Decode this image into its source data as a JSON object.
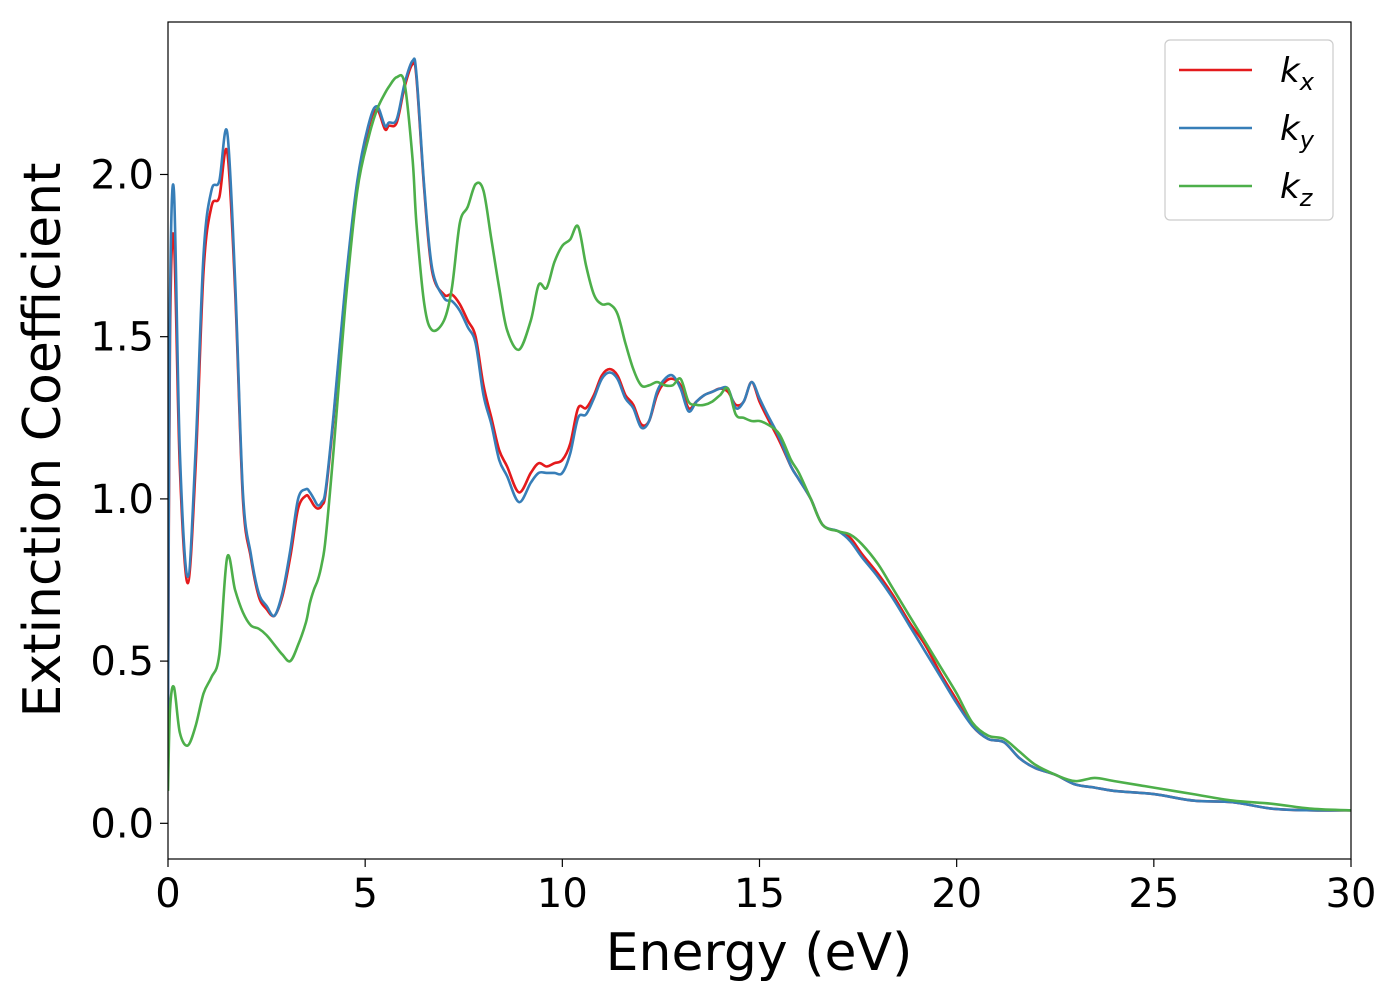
{
  "chart_data": {
    "type": "line",
    "title": "",
    "xlabel": "Energy (eV)",
    "ylabel": "Extinction Coefficient",
    "xlim": [
      0,
      30
    ],
    "ylim": [
      -0.11,
      2.47
    ],
    "xticks": [
      0,
      5,
      10,
      15,
      20,
      25,
      30
    ],
    "xtick_labels": [
      "0",
      "5",
      "10",
      "15",
      "20",
      "25",
      "30"
    ],
    "yticks": [
      0.0,
      0.5,
      1.0,
      1.5,
      2.0
    ],
    "ytick_labels": [
      "0.0",
      "0.5",
      "1.0",
      "1.5",
      "2.0"
    ],
    "grid": false,
    "legend_position": "top-right",
    "series": [
      {
        "name": "k",
        "subscript": "x",
        "color": "#e41a1c",
        "x": [
          0,
          0.05,
          0.15,
          0.3,
          0.5,
          0.7,
          0.9,
          1.1,
          1.3,
          1.5,
          1.7,
          1.9,
          2.1,
          2.3,
          2.5,
          2.7,
          2.9,
          3.1,
          3.3,
          3.5,
          3.6,
          3.7,
          3.8,
          3.9,
          4.0,
          4.2,
          4.5,
          4.8,
          5.1,
          5.3,
          5.5,
          5.6,
          5.8,
          6.0,
          6.2,
          6.3,
          6.5,
          6.7,
          7.0,
          7.2,
          7.4,
          7.6,
          7.8,
          8.0,
          8.2,
          8.4,
          8.6,
          8.9,
          9.2,
          9.4,
          9.6,
          9.8,
          10.0,
          10.2,
          10.4,
          10.6,
          10.8,
          11.0,
          11.2,
          11.4,
          11.6,
          11.8,
          12.0,
          12.2,
          12.4,
          12.6,
          12.8,
          13.0,
          13.2,
          13.4,
          13.6,
          13.8,
          14.0,
          14.2,
          14.4,
          14.6,
          14.8,
          15.0,
          15.2,
          15.5,
          15.8,
          16.0,
          16.3,
          16.6,
          17.0,
          17.3,
          17.6,
          18.0,
          18.4,
          18.8,
          19.2,
          19.6,
          20.0,
          20.4,
          20.8,
          21.2,
          21.6,
          22.0,
          22.5,
          23.0,
          23.5,
          24.0,
          25.0,
          26.0,
          27.0,
          28.0,
          29.0,
          30.0
        ],
        "y": [
          0.3,
          1.5,
          1.8,
          1.1,
          0.74,
          1.1,
          1.7,
          1.9,
          1.93,
          2.07,
          1.65,
          1.0,
          0.82,
          0.7,
          0.66,
          0.64,
          0.7,
          0.82,
          0.97,
          1.01,
          1.0,
          0.98,
          0.97,
          0.98,
          1.02,
          1.25,
          1.65,
          1.97,
          2.15,
          2.2,
          2.14,
          2.15,
          2.16,
          2.27,
          2.34,
          2.3,
          1.95,
          1.7,
          1.63,
          1.63,
          1.6,
          1.55,
          1.5,
          1.35,
          1.25,
          1.15,
          1.1,
          1.02,
          1.08,
          1.11,
          1.1,
          1.11,
          1.12,
          1.17,
          1.28,
          1.28,
          1.32,
          1.38,
          1.4,
          1.38,
          1.32,
          1.29,
          1.23,
          1.24,
          1.32,
          1.36,
          1.37,
          1.35,
          1.28,
          1.3,
          1.32,
          1.33,
          1.34,
          1.33,
          1.29,
          1.3,
          1.36,
          1.3,
          1.25,
          1.18,
          1.1,
          1.06,
          1.0,
          0.92,
          0.9,
          0.88,
          0.83,
          0.77,
          0.7,
          0.62,
          0.55,
          0.46,
          0.38,
          0.3,
          0.26,
          0.25,
          0.2,
          0.17,
          0.15,
          0.12,
          0.11,
          0.1,
          0.09,
          0.07,
          0.065,
          0.045,
          0.04,
          0.04
        ]
      },
      {
        "name": "k",
        "subscript": "y",
        "color": "#377eb8",
        "x": [
          0,
          0.05,
          0.15,
          0.3,
          0.5,
          0.7,
          0.9,
          1.1,
          1.3,
          1.5,
          1.7,
          1.9,
          2.1,
          2.3,
          2.5,
          2.7,
          2.9,
          3.1,
          3.3,
          3.5,
          3.6,
          3.7,
          3.8,
          3.9,
          4.0,
          4.2,
          4.5,
          4.8,
          5.1,
          5.3,
          5.5,
          5.6,
          5.8,
          6.0,
          6.2,
          6.3,
          6.5,
          6.7,
          7.0,
          7.2,
          7.4,
          7.6,
          7.8,
          8.0,
          8.2,
          8.4,
          8.6,
          8.9,
          9.2,
          9.4,
          9.6,
          9.8,
          10.0,
          10.2,
          10.4,
          10.6,
          10.8,
          11.0,
          11.2,
          11.4,
          11.6,
          11.8,
          12.0,
          12.2,
          12.4,
          12.6,
          12.8,
          13.0,
          13.2,
          13.4,
          13.6,
          13.8,
          14.0,
          14.2,
          14.4,
          14.6,
          14.8,
          15.0,
          15.2,
          15.5,
          15.8,
          16.0,
          16.3,
          16.6,
          17.0,
          17.3,
          17.6,
          18.0,
          18.4,
          18.8,
          19.2,
          19.6,
          20.0,
          20.4,
          20.8,
          21.2,
          21.6,
          22.0,
          22.5,
          23.0,
          23.5,
          24.0,
          25.0,
          26.0,
          27.0,
          28.0,
          29.0,
          30.0
        ],
        "y": [
          0.3,
          1.6,
          1.95,
          1.15,
          0.76,
          1.15,
          1.75,
          1.95,
          1.98,
          2.13,
          1.68,
          1.02,
          0.83,
          0.71,
          0.67,
          0.64,
          0.71,
          0.84,
          1.0,
          1.03,
          1.02,
          1.0,
          0.98,
          0.99,
          1.03,
          1.26,
          1.66,
          1.98,
          2.16,
          2.21,
          2.15,
          2.16,
          2.17,
          2.28,
          2.35,
          2.31,
          1.96,
          1.71,
          1.62,
          1.61,
          1.58,
          1.53,
          1.48,
          1.32,
          1.23,
          1.12,
          1.07,
          0.99,
          1.05,
          1.08,
          1.08,
          1.08,
          1.08,
          1.14,
          1.25,
          1.26,
          1.31,
          1.37,
          1.39,
          1.37,
          1.31,
          1.28,
          1.22,
          1.24,
          1.33,
          1.37,
          1.38,
          1.34,
          1.27,
          1.3,
          1.32,
          1.33,
          1.34,
          1.34,
          1.28,
          1.3,
          1.36,
          1.31,
          1.26,
          1.19,
          1.1,
          1.06,
          1.0,
          0.92,
          0.9,
          0.87,
          0.82,
          0.76,
          0.69,
          0.61,
          0.53,
          0.45,
          0.37,
          0.3,
          0.26,
          0.25,
          0.2,
          0.17,
          0.15,
          0.12,
          0.11,
          0.1,
          0.09,
          0.07,
          0.065,
          0.045,
          0.04,
          0.04
        ]
      },
      {
        "name": "k",
        "subscript": "z",
        "color": "#4daf4a",
        "x": [
          0,
          0.05,
          0.15,
          0.3,
          0.5,
          0.7,
          0.9,
          1.1,
          1.3,
          1.5,
          1.7,
          1.9,
          2.1,
          2.3,
          2.5,
          2.7,
          2.9,
          3.1,
          3.3,
          3.5,
          3.6,
          3.7,
          3.8,
          3.9,
          4.0,
          4.2,
          4.5,
          4.8,
          5.1,
          5.3,
          5.5,
          5.6,
          5.8,
          6.0,
          6.2,
          6.3,
          6.5,
          6.7,
          7.0,
          7.2,
          7.4,
          7.6,
          7.8,
          8.0,
          8.2,
          8.4,
          8.6,
          8.9,
          9.2,
          9.4,
          9.6,
          9.8,
          10.0,
          10.2,
          10.4,
          10.6,
          10.8,
          11.0,
          11.2,
          11.4,
          11.6,
          11.8,
          12.0,
          12.2,
          12.4,
          12.6,
          12.8,
          13.0,
          13.2,
          13.4,
          13.6,
          13.8,
          14.0,
          14.2,
          14.4,
          14.6,
          14.8,
          15.0,
          15.2,
          15.5,
          15.8,
          16.0,
          16.3,
          16.6,
          17.0,
          17.3,
          17.6,
          18.0,
          18.4,
          18.8,
          19.2,
          19.6,
          20.0,
          20.4,
          20.8,
          21.2,
          21.6,
          22.0,
          22.5,
          23.0,
          23.5,
          24.0,
          25.0,
          26.0,
          27.0,
          28.0,
          29.0,
          30.0
        ],
        "y": [
          0.1,
          0.35,
          0.42,
          0.28,
          0.24,
          0.3,
          0.4,
          0.45,
          0.52,
          0.82,
          0.72,
          0.65,
          0.61,
          0.6,
          0.58,
          0.55,
          0.52,
          0.5,
          0.55,
          0.62,
          0.68,
          0.72,
          0.75,
          0.8,
          0.88,
          1.15,
          1.6,
          1.95,
          2.12,
          2.2,
          2.25,
          2.27,
          2.3,
          2.28,
          2.05,
          1.85,
          1.6,
          1.52,
          1.55,
          1.65,
          1.85,
          1.9,
          1.97,
          1.95,
          1.8,
          1.65,
          1.52,
          1.46,
          1.55,
          1.66,
          1.65,
          1.73,
          1.78,
          1.8,
          1.84,
          1.72,
          1.63,
          1.6,
          1.6,
          1.57,
          1.48,
          1.4,
          1.35,
          1.35,
          1.36,
          1.35,
          1.35,
          1.37,
          1.3,
          1.29,
          1.29,
          1.3,
          1.32,
          1.34,
          1.26,
          1.25,
          1.24,
          1.24,
          1.23,
          1.2,
          1.12,
          1.08,
          1.0,
          0.92,
          0.9,
          0.89,
          0.86,
          0.8,
          0.72,
          0.64,
          0.56,
          0.48,
          0.4,
          0.31,
          0.27,
          0.26,
          0.22,
          0.18,
          0.15,
          0.13,
          0.14,
          0.13,
          0.11,
          0.09,
          0.07,
          0.06,
          0.045,
          0.04
        ]
      }
    ]
  }
}
